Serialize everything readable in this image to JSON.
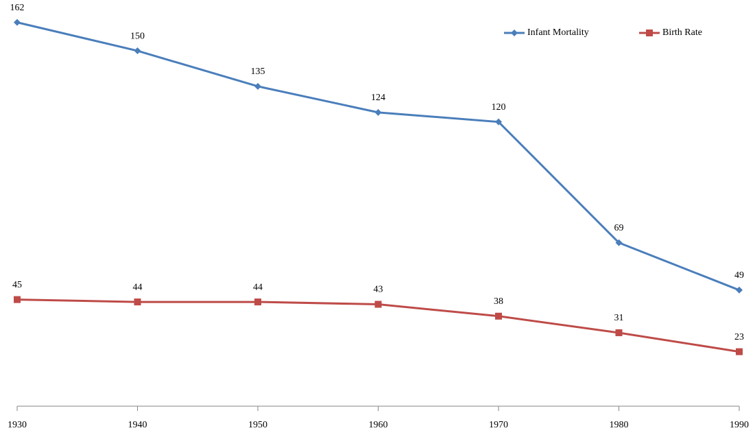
{
  "chart_data": {
    "type": "line",
    "x": [
      1930,
      1940,
      1950,
      1960,
      1970,
      1980,
      1990
    ],
    "xlim": [
      1930,
      1990
    ],
    "xticks": [
      1930,
      1940,
      1950,
      1960,
      1970,
      1980,
      1990
    ],
    "ylim": [
      0,
      170
    ],
    "legend": "upper right",
    "series": [
      {
        "name": "Infant Mortality",
        "color": "#4a7ebb",
        "marker": "diamond",
        "values": [
          162,
          150,
          135,
          124,
          120,
          69,
          49
        ]
      },
      {
        "name": "Birth Rate",
        "color": "#be4b48",
        "marker": "square",
        "values": [
          45,
          44,
          44,
          43,
          38,
          31,
          23
        ]
      }
    ]
  }
}
